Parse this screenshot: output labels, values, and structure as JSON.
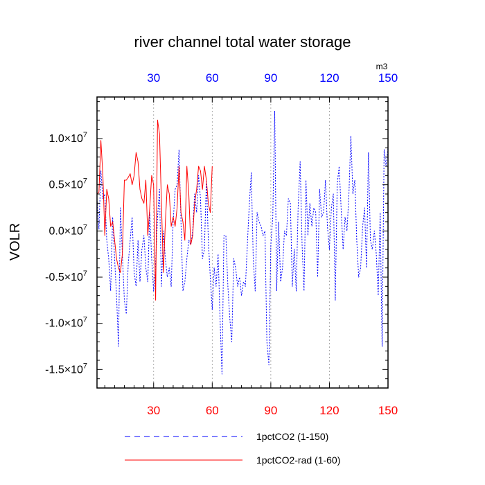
{
  "chart_data": {
    "type": "line",
    "title": "river channel total water storage",
    "ylabel": "VOLR",
    "units_label": "m3",
    "xlim": [
      1,
      150
    ],
    "ylim": [
      -17000000,
      14500000
    ],
    "bottom_ticks": [
      30,
      60,
      90,
      120,
      150
    ],
    "top_ticks": [
      30,
      60,
      90,
      120,
      150
    ],
    "bottom_tick_color": "#ff0000",
    "top_tick_color": "#0000ff",
    "vertical_gridlines_at": [
      30,
      60,
      90,
      120
    ],
    "y_ticks": [
      {
        "value": 10000000,
        "mantissa": "1.0"
      },
      {
        "value": 5000000,
        "mantissa": "0.5"
      },
      {
        "value": 0,
        "mantissa": "0.0"
      },
      {
        "value": -5000000,
        "mantissa": "-0.5"
      },
      {
        "value": -10000000,
        "mantissa": "-1.0"
      },
      {
        "value": -15000000,
        "mantissa": "-1.5"
      }
    ],
    "y_tick_multiplier": "×10",
    "y_tick_exponent": "7",
    "series": [
      {
        "name": "1pctCO2 (1-150)",
        "color": "#0000ff",
        "style": "dashed",
        "x_start": 1,
        "values": [
          3.5,
          0.2,
          6.5,
          3.5,
          4.0,
          -1.0,
          -3.0,
          -6.5,
          1.5,
          -3.0,
          -7.0,
          -12.5,
          2.5,
          -2.5,
          -7.5,
          -9.0,
          -3.5,
          -1.0,
          1.5,
          -4.5,
          -6.0,
          -1.0,
          -5.5,
          -2.0,
          -0.5,
          -4.0,
          -5.5,
          2.0,
          -3.0,
          -6.5,
          -3.5,
          1.5,
          4.5,
          -6.0,
          0.0,
          -3.0,
          -5.0,
          -4.0,
          -6.0,
          1.0,
          4.5,
          5.0,
          8.8,
          1.0,
          -6.5,
          -5.5,
          -3.0,
          -1.0,
          -1.5,
          0.0,
          4.0,
          2.0,
          6.0,
          3.5,
          -3.0,
          -2.0,
          5.5,
          -1.0,
          -5.0,
          -8.5,
          -4.0,
          -6.0,
          -2.5,
          -9.5,
          -15.5,
          -0.5,
          -0.5,
          -6.0,
          -9.5,
          -12.0,
          -3.0,
          -4.0,
          -6.0,
          -5.0,
          -7.0,
          -5.5,
          -6.0,
          -1.5,
          3.0,
          6.3,
          -3.0,
          -6.5,
          2.0,
          1.0,
          0.5,
          -0.5,
          0.0,
          -12.0,
          -14.5,
          -1.5,
          1.5,
          13.0,
          -6.5,
          1.0,
          -5.5,
          -4.0,
          0.0,
          -0.5,
          3.5,
          3.0,
          -6.0,
          -2.0,
          -6.5,
          2.5,
          7.5,
          -1.5,
          -6.5,
          5.5,
          -0.5,
          3.0,
          0.5,
          2.5,
          2.0,
          -5.0,
          4.5,
          1.5,
          2.0,
          5.5,
          0.5,
          -2.0,
          2.5,
          4.0,
          -7.5,
          5.0,
          7.0,
          2.5,
          -2.0,
          1.5,
          0.0,
          4.0,
          10.3,
          4.0,
          5.5,
          -1.0,
          -5.0,
          -4.0,
          0.5,
          2.5,
          -4.0,
          8.5,
          -1.0,
          -2.0,
          0.0,
          -2.5,
          -7.0,
          2.0,
          -12.5,
          8.8,
          7.0,
          9.0
        ],
        "value_scale": 1000000
      },
      {
        "name": "1pctCO2-rad (1-60)",
        "color": "#ff0000",
        "style": "solid",
        "x_start": 1,
        "values": [
          4.0,
          4.2,
          9.8,
          6.0,
          -0.5,
          4.5,
          3.5,
          0.5,
          1.0,
          -1.0,
          -3.0,
          -4.0,
          -4.5,
          -2.5,
          5.5,
          5.5,
          5.8,
          6.2,
          5.0,
          6.0,
          8.5,
          7.5,
          4.5,
          3.5,
          3.0,
          5.5,
          -0.5,
          2.5,
          6.0,
          5.0,
          -7.5,
          12.0,
          10.5,
          3.0,
          -4.5,
          1.0,
          5.0,
          4.0,
          0.5,
          1.5,
          0.5,
          2.5,
          7.0,
          2.0,
          1.0,
          -1.0,
          7.0,
          4.0,
          -1.5,
          -0.5,
          3.0,
          4.5,
          7.0,
          6.5,
          4.5,
          7.0,
          5.5,
          3.0,
          2.0,
          7.0
        ],
        "value_scale": 1000000
      }
    ],
    "legend_placement": "bottom"
  }
}
